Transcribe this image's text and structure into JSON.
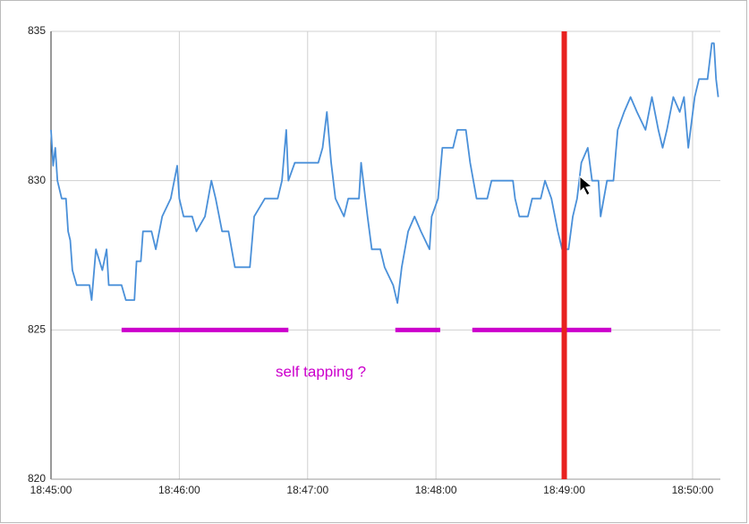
{
  "chart_data": {
    "type": "line",
    "x": [
      "18:45:00",
      "18:45:01",
      "18:45:02",
      "18:45:03",
      "18:45:05",
      "18:45:07",
      "18:45:08",
      "18:45:09",
      "18:45:10",
      "18:45:12",
      "18:45:16",
      "18:45:18",
      "18:45:19",
      "18:45:21",
      "18:45:24",
      "18:45:26",
      "18:45:27",
      "18:45:33",
      "18:45:35",
      "18:45:39",
      "18:45:40",
      "18:45:42",
      "18:45:43",
      "18:45:47",
      "18:45:49",
      "18:45:52",
      "18:45:56",
      "18:45:59",
      "18:46:00",
      "18:46:02",
      "18:46:06",
      "18:46:08",
      "18:46:12",
      "18:46:15",
      "18:46:17",
      "18:46:20",
      "18:46:23",
      "18:46:26",
      "18:46:29",
      "18:46:33",
      "18:46:35",
      "18:46:40",
      "18:46:46",
      "18:46:48",
      "18:46:50",
      "18:46:51",
      "18:46:54",
      "18:47:05",
      "18:47:07",
      "18:47:09",
      "18:47:11",
      "18:47:13",
      "18:47:17",
      "18:47:19",
      "18:47:24",
      "18:47:25",
      "18:47:28",
      "18:47:30",
      "18:47:34",
      "18:47:36",
      "18:47:40",
      "18:47:42",
      "18:47:44",
      "18:47:47",
      "18:47:50",
      "18:47:53",
      "18:47:57",
      "18:47:58",
      "18:48:01",
      "18:48:03",
      "18:48:08",
      "18:48:10",
      "18:48:14",
      "18:48:16",
      "18:48:19",
      "18:48:24",
      "18:48:26",
      "18:48:31",
      "18:48:36",
      "18:48:37",
      "18:48:39",
      "18:48:43",
      "18:48:45",
      "18:48:49",
      "18:48:51",
      "18:48:54",
      "18:48:57",
      "18:48:59",
      "18:49:02",
      "18:49:04",
      "18:49:06",
      "18:49:08",
      "18:49:11",
      "18:49:13",
      "18:49:16",
      "18:49:17",
      "18:49:20",
      "18:49:23",
      "18:49:25",
      "18:49:28",
      "18:49:31",
      "18:49:34",
      "18:49:38",
      "18:49:41",
      "18:49:44",
      "18:49:46",
      "18:49:48",
      "18:49:51",
      "18:49:54",
      "18:49:56",
      "18:49:58",
      "18:50:01",
      "18:50:03",
      "18:50:07",
      "18:50:09",
      "18:50:10",
      "18:50:11",
      "18:50:12"
    ],
    "values": [
      831.7,
      830.5,
      831.1,
      830,
      829.4,
      829.4,
      828.3,
      828,
      827,
      826.5,
      826.5,
      826.5,
      826,
      827.7,
      827,
      827.7,
      826.5,
      826.5,
      826,
      826,
      827.3,
      827.3,
      828.3,
      828.3,
      827.7,
      828.8,
      829.4,
      830.5,
      829.4,
      828.8,
      828.8,
      828.3,
      828.8,
      830,
      829.4,
      828.3,
      828.3,
      827.1,
      827.1,
      827.1,
      828.8,
      829.4,
      829.4,
      830,
      831.7,
      830,
      830.6,
      830.6,
      831.1,
      832.3,
      830.6,
      829.4,
      828.8,
      829.4,
      829.4,
      830.6,
      828.8,
      827.7,
      827.7,
      827.1,
      826.5,
      825.9,
      827.1,
      828.3,
      828.8,
      828.3,
      827.7,
      828.8,
      829.4,
      831.1,
      831.1,
      831.7,
      831.7,
      830.6,
      829.4,
      829.4,
      830,
      830,
      830,
      829.4,
      828.8,
      828.8,
      829.4,
      829.4,
      830,
      829.4,
      828.3,
      827.7,
      827.7,
      828.8,
      829.4,
      830.6,
      831.1,
      830,
      830,
      828.8,
      830,
      830,
      831.7,
      832.3,
      832.8,
      832.3,
      831.7,
      832.8,
      831.7,
      831.1,
      831.7,
      832.8,
      832.3,
      832.8,
      831.1,
      832.8,
      833.4,
      833.4,
      834.6,
      834.6,
      833.4,
      832.8
    ],
    "color": "#4a90d9",
    "xlim": [
      "18:45:00",
      "18:50:13"
    ],
    "xticks": [
      "18:45:00",
      "18:46:00",
      "18:47:00",
      "18:48:00",
      "18:49:00",
      "18:50:00"
    ],
    "ylim": [
      820,
      835
    ],
    "yticks": [
      820,
      825,
      830,
      835
    ],
    "grid": true,
    "highlight_lines": [
      {
        "x": [
          "18:45:33",
          "18:46:51"
        ],
        "y": 825,
        "color": "#cc00cc"
      },
      {
        "x": [
          "18:47:41",
          "18:48:02"
        ],
        "y": 825,
        "color": "#cc00cc"
      },
      {
        "x": [
          "18:48:17",
          "18:49:22"
        ],
        "y": 825,
        "color": "#cc00cc"
      }
    ],
    "vertical_line": {
      "x": "18:49:00",
      "color": "#e8211f"
    },
    "annotation": "self tapping ?",
    "annotation_color": "#cc00cc"
  }
}
